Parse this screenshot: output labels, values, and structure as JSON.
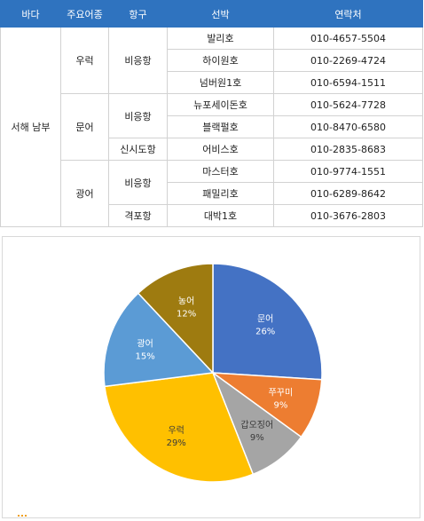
{
  "table": {
    "headers": [
      "바다",
      "주요어종",
      "항구",
      "선박",
      "연락처"
    ],
    "sea": "서해 남부",
    "species_groups": [
      {
        "species": "우럭",
        "ports": [
          {
            "port": "비응항",
            "vessels": [
              {
                "name": "발리호",
                "phone": "010-4657-5504"
              },
              {
                "name": "하이원호",
                "phone": "010-2269-4724"
              },
              {
                "name": "넘버원1호",
                "phone": "010-6594-1511"
              }
            ]
          }
        ]
      },
      {
        "species": "문어",
        "ports": [
          {
            "port": "비응항",
            "vessels": [
              {
                "name": "뉴포세이돈호",
                "phone": "010-5624-7728"
              },
              {
                "name": "블랙펄호",
                "phone": "010-8470-6580"
              }
            ]
          },
          {
            "port": "신시도항",
            "vessels": [
              {
                "name": "어비스호",
                "phone": "010-2835-8683"
              }
            ]
          }
        ]
      },
      {
        "species": "광어",
        "ports": [
          {
            "port": "비응항",
            "vessels": [
              {
                "name": "마스터호",
                "phone": "010-9774-1551"
              },
              {
                "name": "패밀리호",
                "phone": "010-6289-8642"
              }
            ]
          },
          {
            "port": "격포항",
            "vessels": [
              {
                "name": "대박1호",
                "phone": "010-3676-2803"
              }
            ]
          }
        ]
      }
    ]
  },
  "chart_data": {
    "type": "pie",
    "title": "",
    "start_angle_deg": 0,
    "direction": "clockwise",
    "slices": [
      {
        "label": "문어",
        "value": 26,
        "display": "26%",
        "color": "#4472c4"
      },
      {
        "label": "쭈꾸미",
        "value": 9,
        "display": "9%",
        "color": "#ed7d31"
      },
      {
        "label": "갑오징어",
        "value": 9,
        "display": "9%",
        "color": "#a5a5a5"
      },
      {
        "label": "우럭",
        "value": 29,
        "display": "29%",
        "color": "#ffc000"
      },
      {
        "label": "광어",
        "value": 15,
        "display": "15%",
        "color": "#5b9bd5"
      },
      {
        "label": "농어",
        "value": 12,
        "display": "12%",
        "color": "#9e7b10"
      }
    ]
  }
}
